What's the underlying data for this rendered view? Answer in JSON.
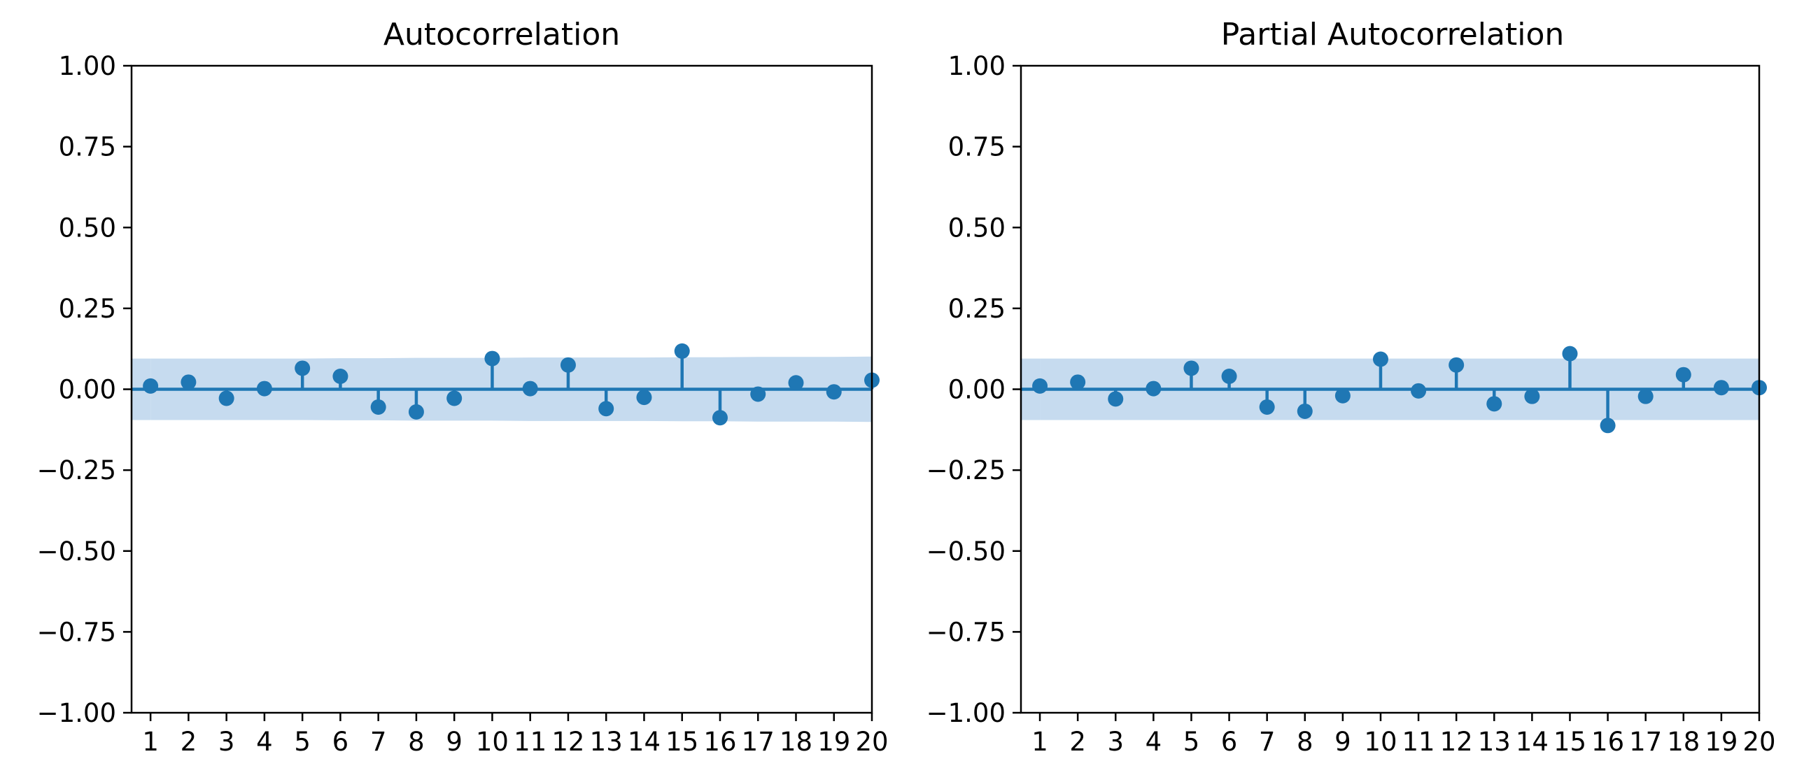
{
  "chart_data": [
    {
      "type": "stem",
      "title": "Autocorrelation",
      "xlabel": "",
      "ylabel": "",
      "x": [
        1,
        2,
        3,
        4,
        5,
        6,
        7,
        8,
        9,
        10,
        11,
        12,
        13,
        14,
        15,
        16,
        17,
        18,
        19,
        20
      ],
      "values": [
        0.01,
        0.022,
        -0.028,
        0.002,
        0.065,
        0.04,
        -0.055,
        -0.07,
        -0.028,
        0.095,
        0.002,
        0.075,
        -0.06,
        -0.025,
        0.118,
        -0.088,
        -0.015,
        0.02,
        -0.008,
        0.028
      ],
      "confidence_band_upper": [
        0.095,
        0.095,
        0.095,
        0.095,
        0.095,
        0.096,
        0.096,
        0.097,
        0.097,
        0.097,
        0.098,
        0.098,
        0.098,
        0.098,
        0.099,
        0.099,
        0.1,
        0.1,
        0.1,
        0.101
      ],
      "confidence_band_lower": [
        -0.095,
        -0.095,
        -0.095,
        -0.095,
        -0.095,
        -0.096,
        -0.096,
        -0.097,
        -0.097,
        -0.097,
        -0.098,
        -0.098,
        -0.098,
        -0.098,
        -0.099,
        -0.099,
        -0.1,
        -0.1,
        -0.1,
        -0.101
      ],
      "xlim": [
        0.5,
        20
      ],
      "ylim": [
        -1.0,
        1.0
      ],
      "yticks": [
        "1.00",
        "0.75",
        "0.50",
        "0.25",
        "0.00",
        "−0.25",
        "−0.50",
        "−0.75",
        "−1.00"
      ],
      "xticks": [
        "1",
        "2",
        "3",
        "4",
        "5",
        "6",
        "7",
        "8",
        "9",
        "10",
        "11",
        "12",
        "13",
        "14",
        "15",
        "16",
        "17",
        "18",
        "19",
        "20"
      ],
      "grid": false,
      "legend": "none"
    },
    {
      "type": "stem",
      "title": "Partial Autocorrelation",
      "xlabel": "",
      "ylabel": "",
      "x": [
        1,
        2,
        3,
        4,
        5,
        6,
        7,
        8,
        9,
        10,
        11,
        12,
        13,
        14,
        15,
        16,
        17,
        18,
        19,
        20
      ],
      "values": [
        0.01,
        0.022,
        -0.03,
        0.002,
        0.065,
        0.04,
        -0.055,
        -0.068,
        -0.02,
        0.093,
        -0.005,
        0.075,
        -0.045,
        -0.022,
        0.11,
        -0.112,
        -0.022,
        0.045,
        0.005,
        0.005
      ],
      "confidence_band_upper": [
        0.095,
        0.095,
        0.095,
        0.095,
        0.095,
        0.095,
        0.095,
        0.095,
        0.095,
        0.095,
        0.095,
        0.095,
        0.095,
        0.095,
        0.095,
        0.095,
        0.095,
        0.095,
        0.095,
        0.095
      ],
      "confidence_band_lower": [
        -0.095,
        -0.095,
        -0.095,
        -0.095,
        -0.095,
        -0.095,
        -0.095,
        -0.095,
        -0.095,
        -0.095,
        -0.095,
        -0.095,
        -0.095,
        -0.095,
        -0.095,
        -0.095,
        -0.095,
        -0.095,
        -0.095,
        -0.095
      ],
      "xlim": [
        0.5,
        20
      ],
      "ylim": [
        -1.0,
        1.0
      ],
      "yticks": [
        "1.00",
        "0.75",
        "0.50",
        "0.25",
        "0.00",
        "−0.25",
        "−0.50",
        "−0.75",
        "−1.00"
      ],
      "xticks": [
        "1",
        "2",
        "3",
        "4",
        "5",
        "6",
        "7",
        "8",
        "9",
        "10",
        "11",
        "12",
        "13",
        "14",
        "15",
        "16",
        "17",
        "18",
        "19",
        "20"
      ],
      "grid": false,
      "legend": "none"
    }
  ],
  "colors": {
    "series": "#1f77b4",
    "band": "#c6dbef",
    "axis": "#000000"
  }
}
